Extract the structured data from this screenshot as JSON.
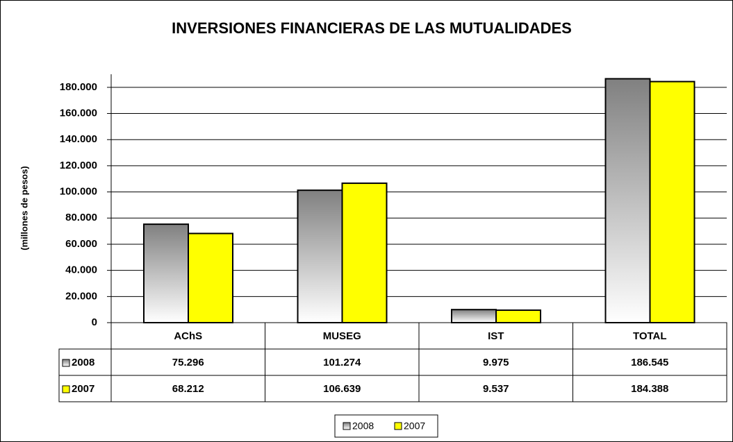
{
  "chart_data": {
    "type": "bar",
    "title": "INVERSIONES FINANCIERAS DE LAS MUTUALIDADES",
    "y_label": "(millones de pesos)",
    "categories": [
      "AChS",
      "MUSEG",
      "IST",
      "TOTAL"
    ],
    "series": [
      {
        "name": "2008",
        "color": "#808080",
        "values": [
          75296,
          101274,
          9975,
          186545
        ],
        "value_labels": [
          "75.296",
          "101.274",
          "9.975",
          "186.545"
        ]
      },
      {
        "name": "2007",
        "color": "#ffff00",
        "values": [
          68212,
          106639,
          9537,
          184388
        ],
        "value_labels": [
          "68.212",
          "106.639",
          "9.537",
          "184.388"
        ]
      }
    ],
    "ylim": [
      0,
      190000
    ],
    "yticks": [
      0,
      {
        "value": 20000,
        "label": "20.000"
      },
      {
        "value": 40000,
        "label": "40.000"
      },
      {
        "value": 60000,
        "label": "60.000"
      },
      {
        "value": 80000,
        "label": "80.000"
      },
      {
        "value": 100000,
        "label": "100.000"
      },
      {
        "value": 120000,
        "label": "120.000"
      },
      {
        "value": 140000,
        "label": "140.000"
      },
      {
        "value": 160000,
        "label": "160.000"
      },
      {
        "value": 180000,
        "label": "180.000"
      }
    ],
    "grid": true,
    "legend": "bottom"
  }
}
